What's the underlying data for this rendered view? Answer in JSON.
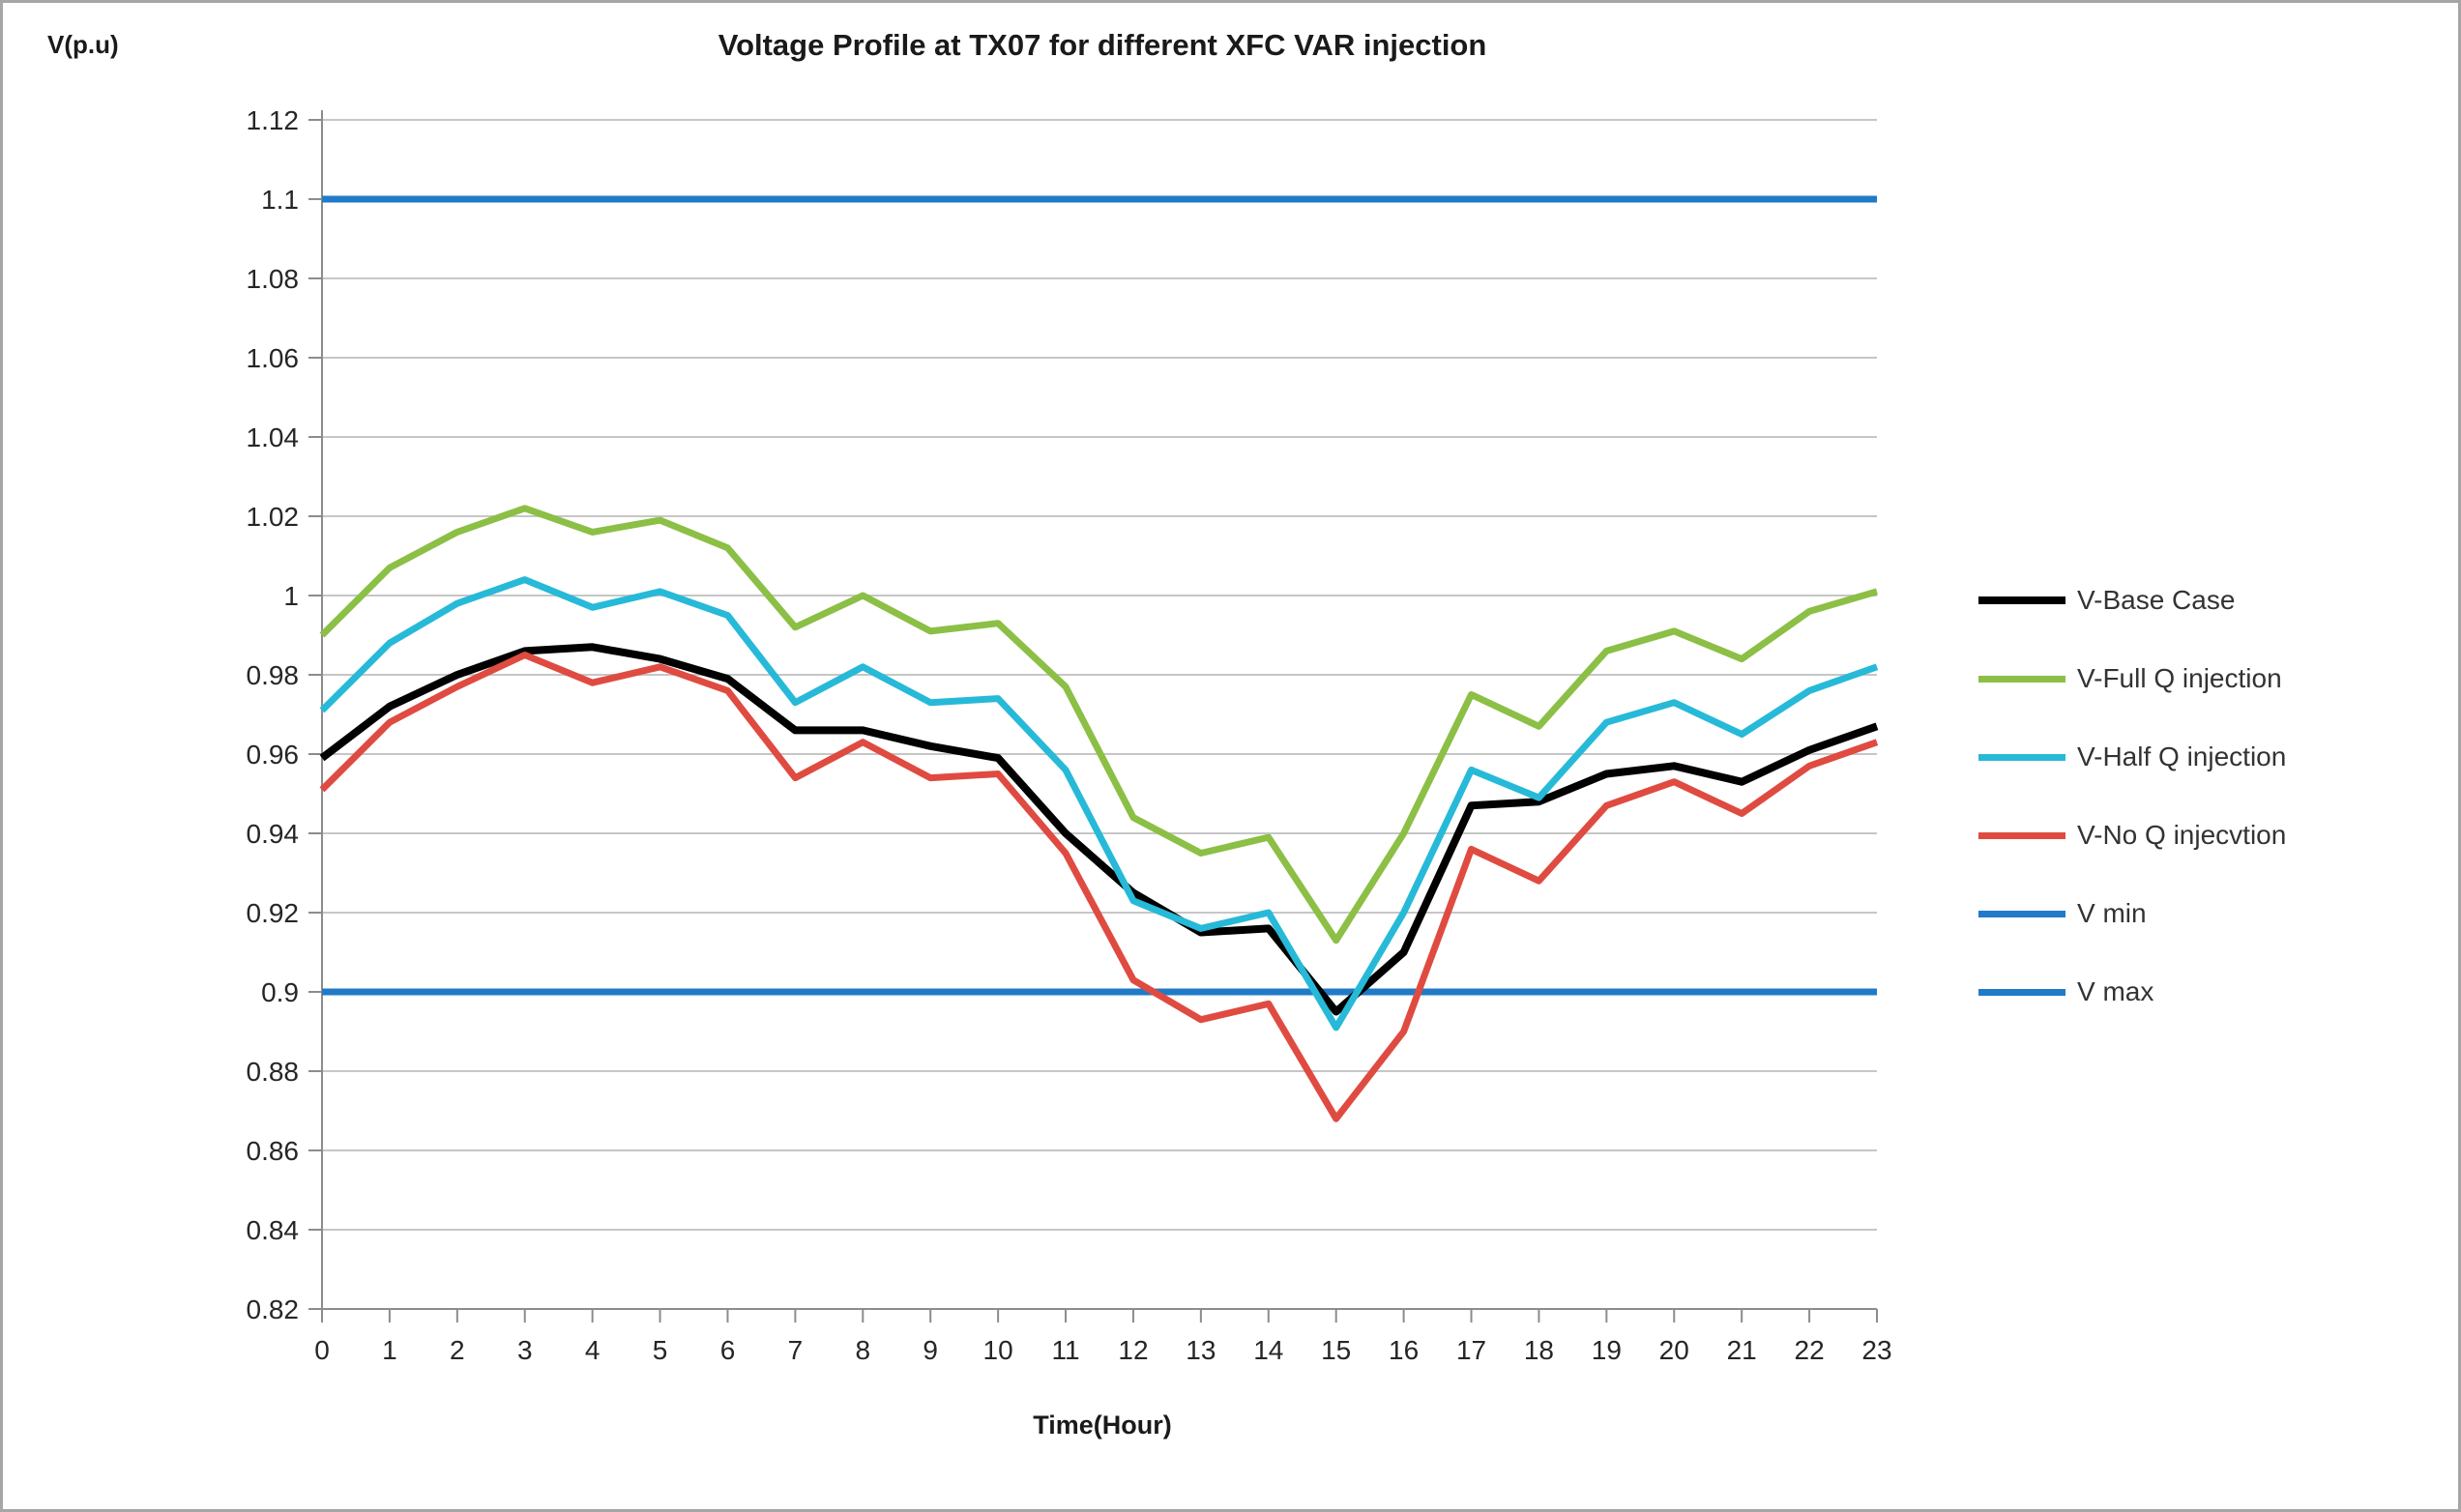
{
  "figure": {
    "title": "Voltage Profile at TX07 for different XFC VAR injection",
    "y_axis_label": "V(p.u)",
    "x_axis_label": "Time(Hour)"
  },
  "colors": {
    "grid": "#c6c6c6",
    "axis": "#8c8c8c",
    "tick_text": "#262626"
  },
  "chart_data": {
    "type": "line",
    "title": "Voltage Profile at TX07 for different XFC VAR injection",
    "xlabel": "Time(Hour)",
    "ylabel": "V(p.u)",
    "grid": true,
    "legend_position": "right",
    "ylim": [
      0.82,
      1.12
    ],
    "ytick_step": 0.02,
    "ytick_labels": [
      "0.82",
      "0.84",
      "0.86",
      "0.88",
      "0.9",
      "0.92",
      "0.94",
      "0.96",
      "0.98",
      "1",
      "1.02",
      "1.04",
      "1.06",
      "1.08",
      "1.1",
      "1.12"
    ],
    "categories": [
      "0",
      "1",
      "2",
      "3",
      "4",
      "5",
      "6",
      "7",
      "8",
      "9",
      "10",
      "11",
      "12",
      "13",
      "14",
      "15",
      "16",
      "17",
      "18",
      "19",
      "20",
      "21",
      "22",
      "23"
    ],
    "draw_order": [
      4,
      5,
      0,
      1,
      2,
      3
    ],
    "series": [
      {
        "name": "V-Base Case",
        "color": "#000000",
        "width": 8,
        "values": [
          0.959,
          0.972,
          0.98,
          0.986,
          0.987,
          0.984,
          0.979,
          0.966,
          0.966,
          0.962,
          0.959,
          0.94,
          0.925,
          0.915,
          0.916,
          0.895,
          0.91,
          0.947,
          0.948,
          0.955,
          0.957,
          0.953,
          0.961,
          0.967
        ]
      },
      {
        "name": "V-Full Q injection",
        "color": "#8cbf45",
        "width": 7,
        "values": [
          0.99,
          1.007,
          1.016,
          1.022,
          1.016,
          1.019,
          1.012,
          0.992,
          1.0,
          0.991,
          0.993,
          0.977,
          0.944,
          0.935,
          0.939,
          0.913,
          0.94,
          0.975,
          0.967,
          0.986,
          0.991,
          0.984,
          0.996,
          1.001
        ]
      },
      {
        "name": "V-Half Q injection",
        "color": "#27b9d8",
        "width": 7,
        "values": [
          0.971,
          0.988,
          0.998,
          1.004,
          0.997,
          1.001,
          0.995,
          0.973,
          0.982,
          0.973,
          0.974,
          0.956,
          0.923,
          0.916,
          0.92,
          0.891,
          0.92,
          0.956,
          0.949,
          0.968,
          0.973,
          0.965,
          0.976,
          0.982
        ]
      },
      {
        "name": "V-No Q injecvtion",
        "color": "#df4b41",
        "width": 7,
        "values": [
          0.951,
          0.968,
          0.977,
          0.985,
          0.978,
          0.982,
          0.976,
          0.954,
          0.963,
          0.954,
          0.955,
          0.935,
          0.903,
          0.893,
          0.897,
          0.868,
          0.89,
          0.936,
          0.928,
          0.947,
          0.953,
          0.945,
          0.957,
          0.963
        ]
      },
      {
        "name": "V min",
        "color": "#1f7bc8",
        "width": 7,
        "constant": 0.9
      },
      {
        "name": "V max",
        "color": "#1f7bc8",
        "width": 7,
        "constant": 1.1
      }
    ]
  }
}
